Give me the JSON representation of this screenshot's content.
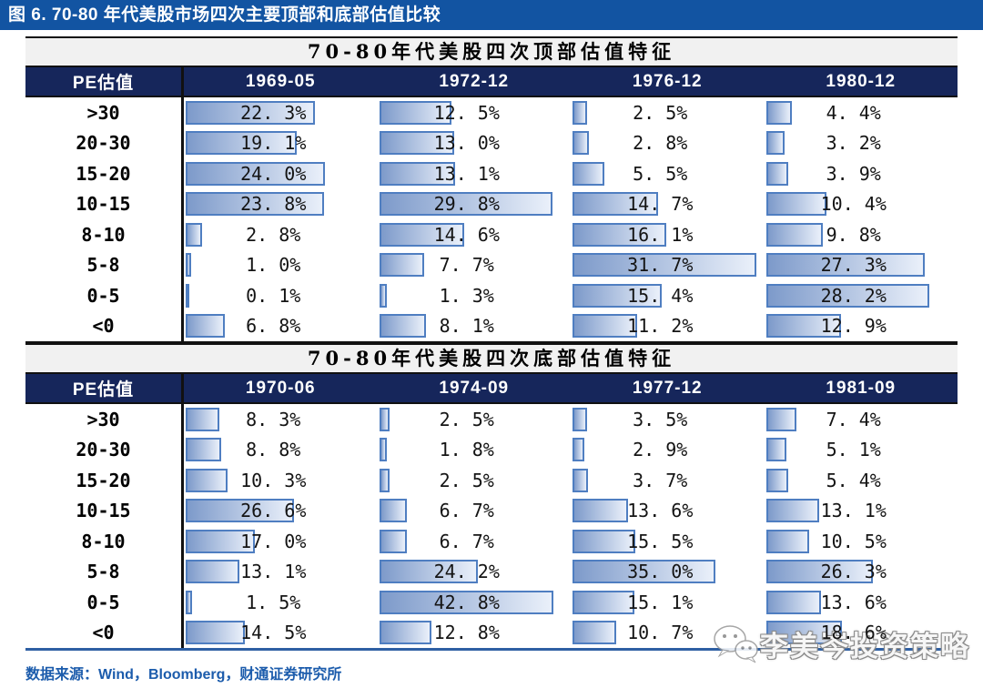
{
  "figure": {
    "title": "图 6. 70-80 年代美股市场四次主要顶部和底部估值比较",
    "source": "数据来源：Wind，Bloomberg，财通证券研究所",
    "watermark": "李美岑投资策略"
  },
  "pe_column_header": "PE估值",
  "colors": {
    "title_bar_bg": "#1254A2",
    "header_bg": "#16265B",
    "subtitle_bg": "#F1F1F1",
    "bar_border": "#4F7EC1",
    "bar_fill_start": "#7D9ACA",
    "bar_fill_end": "#EAF0FA",
    "source_text": "#1C5CAC",
    "table_bottom_line": "#2E5FA3"
  },
  "chart_data": [
    {
      "type": "bar",
      "title": "70-80年代美股四次顶部估值特征",
      "orientation": "horizontal",
      "unit": "%",
      "xlim": [
        0,
        33
      ],
      "categories": [
        ">30",
        "20-30",
        "15-20",
        "10-15",
        "8-10",
        "5-8",
        "0-5",
        "<0"
      ],
      "series": [
        {
          "name": "1969-05",
          "values": [
            22.3,
            19.1,
            24.0,
            23.8,
            2.8,
            1.0,
            0.1,
            6.8
          ]
        },
        {
          "name": "1972-12",
          "values": [
            12.5,
            13.0,
            13.1,
            29.8,
            14.6,
            7.7,
            1.3,
            8.1
          ]
        },
        {
          "name": "1976-12",
          "values": [
            2.5,
            2.8,
            5.5,
            14.7,
            16.1,
            31.7,
            15.4,
            11.2
          ]
        },
        {
          "name": "1980-12",
          "values": [
            4.4,
            3.2,
            3.9,
            10.4,
            9.8,
            27.3,
            28.2,
            12.9
          ]
        }
      ]
    },
    {
      "type": "bar",
      "title": "70-80年代美股四次底部估值特征",
      "orientation": "horizontal",
      "unit": "%",
      "xlim": [
        0,
        47
      ],
      "categories": [
        ">30",
        "20-30",
        "15-20",
        "10-15",
        "8-10",
        "5-8",
        "0-5",
        "<0"
      ],
      "series": [
        {
          "name": "1970-06",
          "values": [
            8.3,
            8.8,
            10.3,
            26.6,
            17.0,
            13.1,
            1.5,
            14.5
          ]
        },
        {
          "name": "1974-09",
          "values": [
            2.5,
            1.8,
            2.5,
            6.7,
            6.7,
            24.2,
            42.8,
            12.8
          ]
        },
        {
          "name": "1977-12",
          "values": [
            3.5,
            2.9,
            3.7,
            13.6,
            15.5,
            35.0,
            15.1,
            10.7
          ]
        },
        {
          "name": "1981-09",
          "values": [
            7.4,
            5.1,
            5.4,
            13.1,
            10.5,
            26.3,
            13.6,
            18.6
          ]
        }
      ]
    }
  ]
}
